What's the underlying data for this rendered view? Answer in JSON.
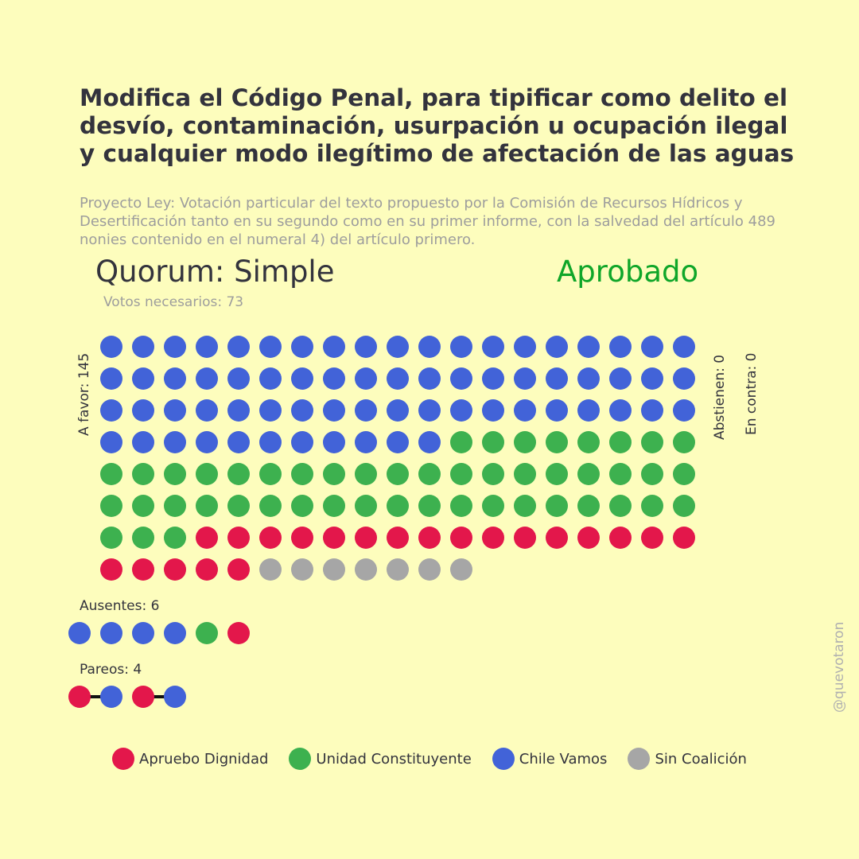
{
  "title": "Modifica el Código Penal, para tipificar como delito el desvío, contaminación, usurpación u ocupación ilegal y cualquier modo ilegítimo de afectación de las aguas",
  "subtitle": "Proyecto Ley: Votación particular del texto propuesto por la Comisión de Recursos Hídricos y Desertificación tanto en su segundo como en su primer informe, con la salvedad del artículo 489 nonies contenido en el numeral 4) del artículo primero.",
  "quorum": "Quorum: Simple",
  "result": "Aprobado",
  "votes_needed": "Votos necesarios: 73",
  "labels": {
    "a_favor": "A favor: 145",
    "abstienen": "Abstienen: 0",
    "en_contra": "En contra: 0",
    "ausentes": "Ausentes: 6",
    "pareos": "Pareos: 4"
  },
  "watermark": "@quevotaron",
  "colors": {
    "Apruebo Dignidad": "#e3174b",
    "Unidad Constituyente": "#3db14f",
    "Chile Vamos": "#4263d8",
    "Sin Coalición": "#a6a6a6",
    "background": "#fdfdbd",
    "approved": "#0fa629"
  },
  "legend": [
    {
      "label": "Apruebo Dignidad",
      "color": "#e3174b"
    },
    {
      "label": "Unidad Constituyente",
      "color": "#3db14f"
    },
    {
      "label": "Chile Vamos",
      "color": "#4263d8"
    },
    {
      "label": "Sin Coalición",
      "color": "#a6a6a6"
    }
  ],
  "chart_data": {
    "type": "waffle",
    "a_favor": [
      {
        "coalition": "Chile Vamos",
        "count": 68
      },
      {
        "coalition": "Unidad Constituyente",
        "count": 49
      },
      {
        "coalition": "Apruebo Dignidad",
        "count": 21
      },
      {
        "coalition": "Sin Coalición",
        "count": 7
      }
    ],
    "a_favor_total": 145,
    "abstienen": 0,
    "en_contra": 0,
    "ausentes": [
      "Chile Vamos",
      "Chile Vamos",
      "Chile Vamos",
      "Chile Vamos",
      "Unidad Constituyente",
      "Apruebo Dignidad"
    ],
    "pareos": [
      [
        "Apruebo Dignidad",
        "Chile Vamos"
      ],
      [
        "Apruebo Dignidad",
        "Chile Vamos"
      ]
    ]
  }
}
